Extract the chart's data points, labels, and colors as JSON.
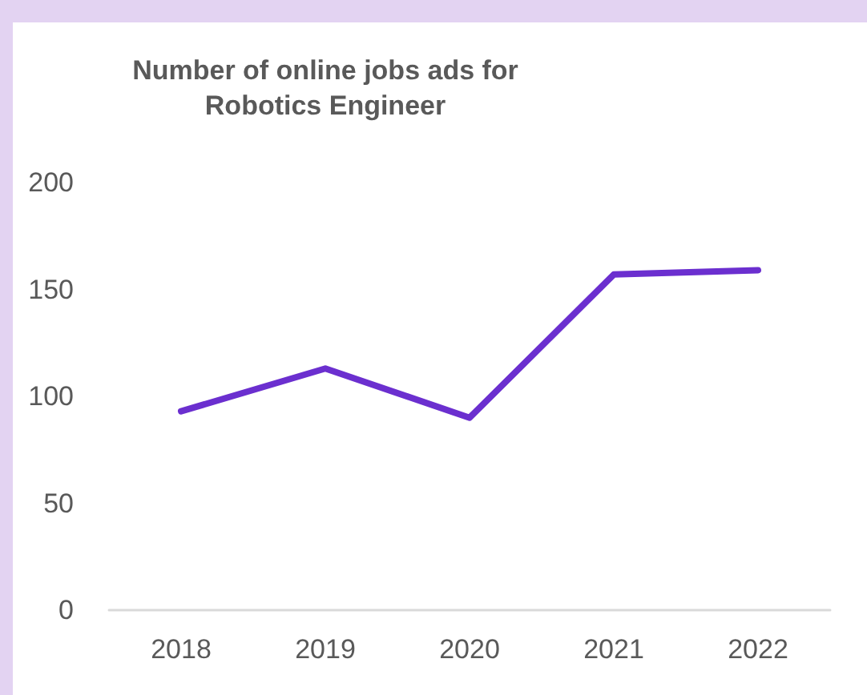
{
  "chart_data": {
    "type": "line",
    "title": "Number of online jobs ads for\nRobotics Engineer",
    "categories": [
      "2018",
      "2019",
      "2020",
      "2021",
      "2022"
    ],
    "series": [
      {
        "color": "#6b2fcf",
        "values": [
          93,
          113,
          90,
          157,
          159
        ]
      }
    ],
    "ylim": [
      0,
      200
    ],
    "yticks": [
      0,
      50,
      100,
      150,
      200
    ],
    "grid": false,
    "marker": "none",
    "line_style": "solid"
  }
}
